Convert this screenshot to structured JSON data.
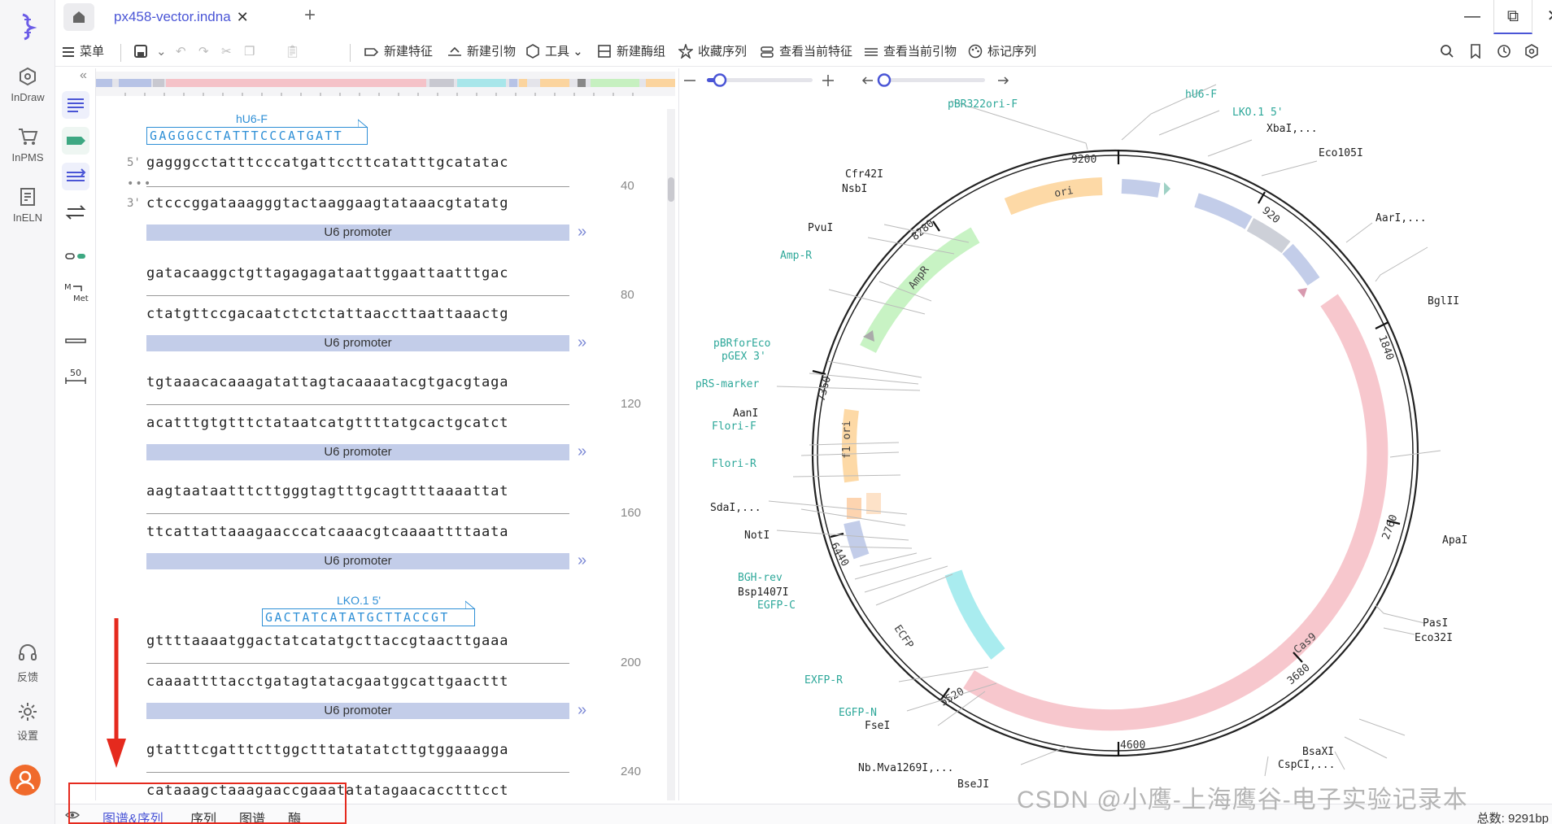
{
  "rail": {
    "items": [
      {
        "label": "InDraw"
      },
      {
        "label": "InPMS"
      },
      {
        "label": "InELN"
      },
      {
        "label": "反馈"
      },
      {
        "label": "设置"
      }
    ]
  },
  "titlebar": {
    "tab_title": "px458-vector.indna"
  },
  "toolbar": {
    "menu": "菜单",
    "new_feature": "新建特征",
    "new_primer": "新建引物",
    "tools": "工具",
    "new_enzyme_group": "新建酶组",
    "favorite_sequence": "收藏序列",
    "view_features": "查看当前特征",
    "view_primers": "查看当前引物",
    "mark_sequence": "标记序列"
  },
  "sequence": {
    "strand_top": "5'",
    "strand_bottom": "3'",
    "primers": [
      {
        "name": "hU6-F",
        "seq": "GAGGGCCTATTTCCCATGATT"
      },
      {
        "name": "LKO.1 5'",
        "seq": "GACTATCATATGCTTACCGT"
      }
    ],
    "blocks": [
      {
        "top": "gagggcctatttcccatgattccttcatatttgcatatac",
        "bottom": "ctcccggataaagggtactaaggaagtataaacgtatatg",
        "num": "40",
        "feature": "U6 promoter"
      },
      {
        "top": "gatacaaggctgttagagagataattggaattaatttgac",
        "bottom": "ctatgttccgacaatctctctattaaccttaattaaactg",
        "num": "80",
        "feature": "U6 promoter"
      },
      {
        "top": "tgtaaacacaaagatattagtacaaaatacgtgacgtaga",
        "bottom": "acatttgtgtttctataatcatgttttatgcactgcatct",
        "num": "120",
        "feature": "U6 promoter"
      },
      {
        "top": "aagtaataatttcttgggtagtttgcagttttaaaattat",
        "bottom": "ttcattattaaagaacccatcaaacgtcaaaattttaata",
        "num": "160",
        "feature": "U6 promoter"
      },
      {
        "top": "gttttaaaatggactatcatatgcttaccgtaacttgaaa",
        "bottom": "caaaattttacctgatagtatacgaatggcattgaacttt",
        "num": "200",
        "feature": "U6 promoter"
      },
      {
        "top": "gtatttcgatttcttggctttatatatcttgtggaaagga",
        "bottom": "cataaagctaaagaaccgaaatatatagaacacctttcct",
        "num": "240",
        "feature": ""
      }
    ]
  },
  "map": {
    "ticks": [
      "9200",
      "920",
      "1840",
      "2760",
      "3680",
      "4600",
      "5520",
      "6440",
      "7360",
      "8280"
    ],
    "features": [
      "ori",
      "AmpR",
      "f1 ori",
      "ECFP",
      "Cas9"
    ],
    "site_labels": {
      "pBR322ori_F": "pBR322ori-F",
      "hU6_F": "hU6-F",
      "LKO1": "LKO.1 5'",
      "XbaI": "XbaI,...",
      "Eco105I": "Eco105I",
      "AarI": "AarI,...",
      "BglII": "BglII",
      "ApaI": "ApaI",
      "PasI": "PasI",
      "Eco32I": "Eco32I",
      "BsaXI": "BsaXI",
      "CspCI": "CspCI,...",
      "BseJI": "BseJI",
      "NbMva": "Nb.Mva1269I,...",
      "FseI": "FseI",
      "EGFP_N": "EGFP-N",
      "EXFP_R": "EXFP-R",
      "EGFP_C": "EGFP-C",
      "Bsp1407I": "Bsp1407I",
      "BGH_rev": "BGH-rev",
      "NotI": "NotI",
      "SdaI": "SdaI,...",
      "Flori_R": "Flori-R",
      "Flori_F": "Flori-F",
      "AanI": "AanI",
      "pRS_marker": "pRS-marker",
      "pGEX3": "pGEX 3'",
      "pBRforEco": "pBRforEco",
      "Amp_R": "Amp-R",
      "PvuI": "PvuI",
      "NsbI": "NsbI",
      "Cfr42I": "Cfr42I"
    }
  },
  "bottom": {
    "tabs": [
      "图谱&序列",
      "序列",
      "图谱",
      "酶"
    ],
    "total": "总数: 9291bp"
  },
  "watermark": "CSDN @小鹰-上海鹰谷-电子实验记录本",
  "colors": {
    "accent": "#4a55d6",
    "primer": "#2e8fd6",
    "promoter": "#c3cde9",
    "highlight": "#e52a1e"
  }
}
